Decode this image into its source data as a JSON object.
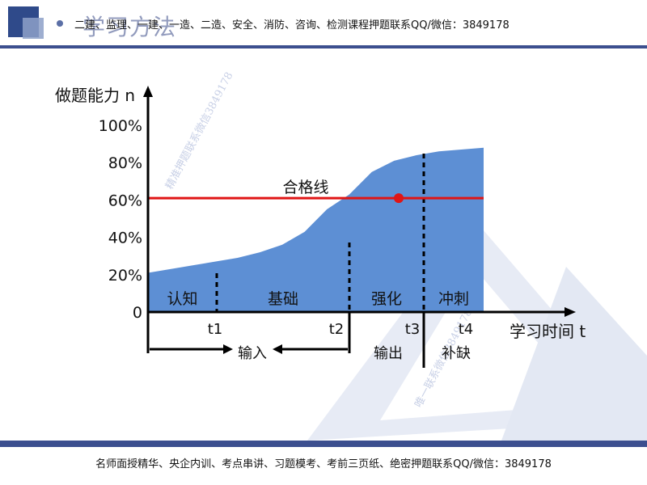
{
  "header": {
    "section_title": "学习方法",
    "promo": "二建、监理、一建、一造、二造、安全、消防、咨询、检测课程押题联系QQ/微信：3849178"
  },
  "footer": {
    "text": "名师面授精华、央企内训、考点串讲、习题模考、考前三页纸、绝密押题联系QQ/微信：3849178"
  },
  "watermarks": [
    "精准押题联系微信3849178",
    "唯一联系微信3849178"
  ],
  "chart_data": {
    "type": "area",
    "ylabel": "做题能力 n",
    "xlabel": "学习时间 t",
    "yticks": [
      "0",
      "20%",
      "40%",
      "60%",
      "80%",
      "100%"
    ],
    "ylim": [
      0,
      100
    ],
    "xticks": [
      "t1",
      "t2",
      "t3",
      "t4"
    ],
    "x_points": [
      0,
      1,
      2,
      3,
      4,
      5,
      6,
      7,
      8,
      9,
      10,
      11,
      12,
      13,
      14,
      15
    ],
    "values": [
      21,
      23,
      25,
      27,
      29,
      32,
      36,
      43,
      55,
      63,
      75,
      81,
      84,
      86,
      87,
      88
    ],
    "phases": [
      {
        "label": "认知",
        "from": 0,
        "to": 1
      },
      {
        "label": "基础",
        "from": 1,
        "to": 2
      },
      {
        "label": "强化",
        "from": 2,
        "to": 3
      },
      {
        "label": "冲刺",
        "from": 3,
        "to": 4
      }
    ],
    "pass_line": {
      "label": "合格线",
      "value": 61,
      "color": "#e01515"
    },
    "bottom_labels": {
      "input": "输入",
      "output": "输出",
      "fill": "补缺"
    },
    "area_color": "#5d8fd4",
    "grid": false
  }
}
